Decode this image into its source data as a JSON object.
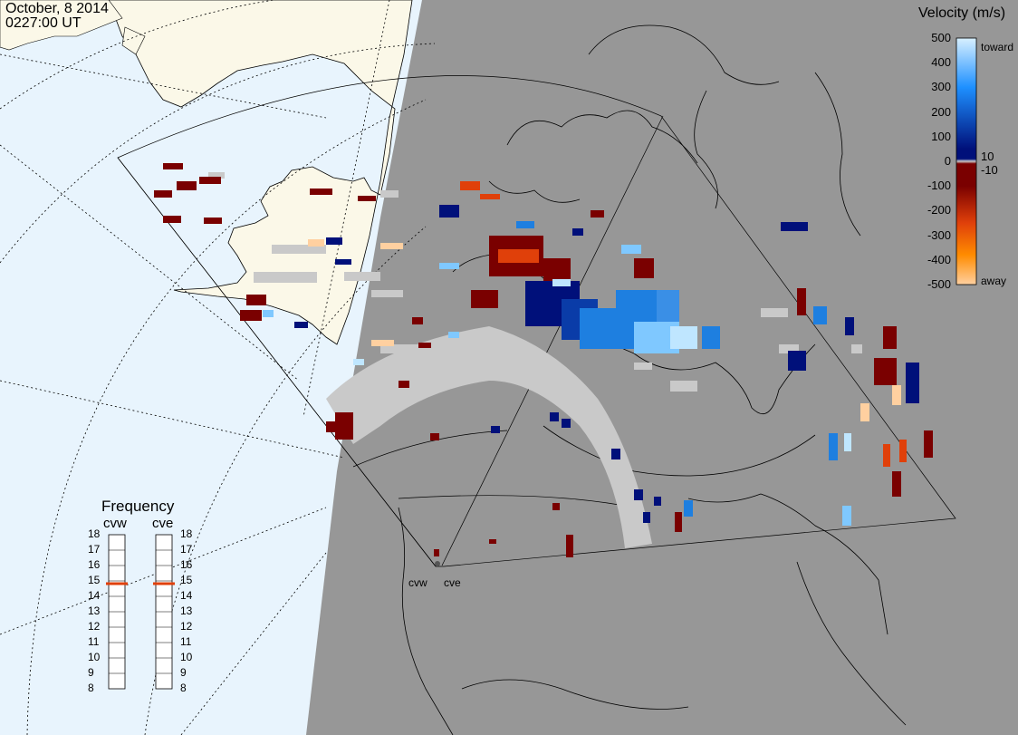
{
  "header": {
    "date": "October, 8 2014",
    "time": "0227:00 UT"
  },
  "velocity_scale": {
    "title": "Velocity (m/s)",
    "ticks": [
      "500",
      "400",
      "300",
      "200",
      "100",
      "0",
      "-100",
      "-200",
      "-300",
      "-400",
      "-500"
    ],
    "mid_labels": [
      "10",
      "-10"
    ],
    "toward_label": "toward",
    "away_label": "away",
    "colors": {
      "toward_high": "#bfe6ff",
      "toward_mid": "#1e7fe0",
      "toward_low": "#00107a",
      "near_zero": "#c9c9c9",
      "away_low": "#7a0000",
      "away_mid": "#e0400a",
      "away_high": "#ffd0a0"
    }
  },
  "frequency": {
    "title": "Frequency",
    "radars": [
      {
        "label": "cvw",
        "value": 15
      },
      {
        "label": "cve",
        "value": 15
      }
    ],
    "ticks": [
      "18",
      "17",
      "16",
      "15",
      "14",
      "13",
      "12",
      "11",
      "10",
      "9",
      "8"
    ]
  },
  "radar_labels": [
    "cvw",
    "cve"
  ],
  "map_colors": {
    "ocean_day": "#e8f4fd",
    "land_day": "#fbf8e8",
    "night": "#979797",
    "coast": "#000000"
  }
}
